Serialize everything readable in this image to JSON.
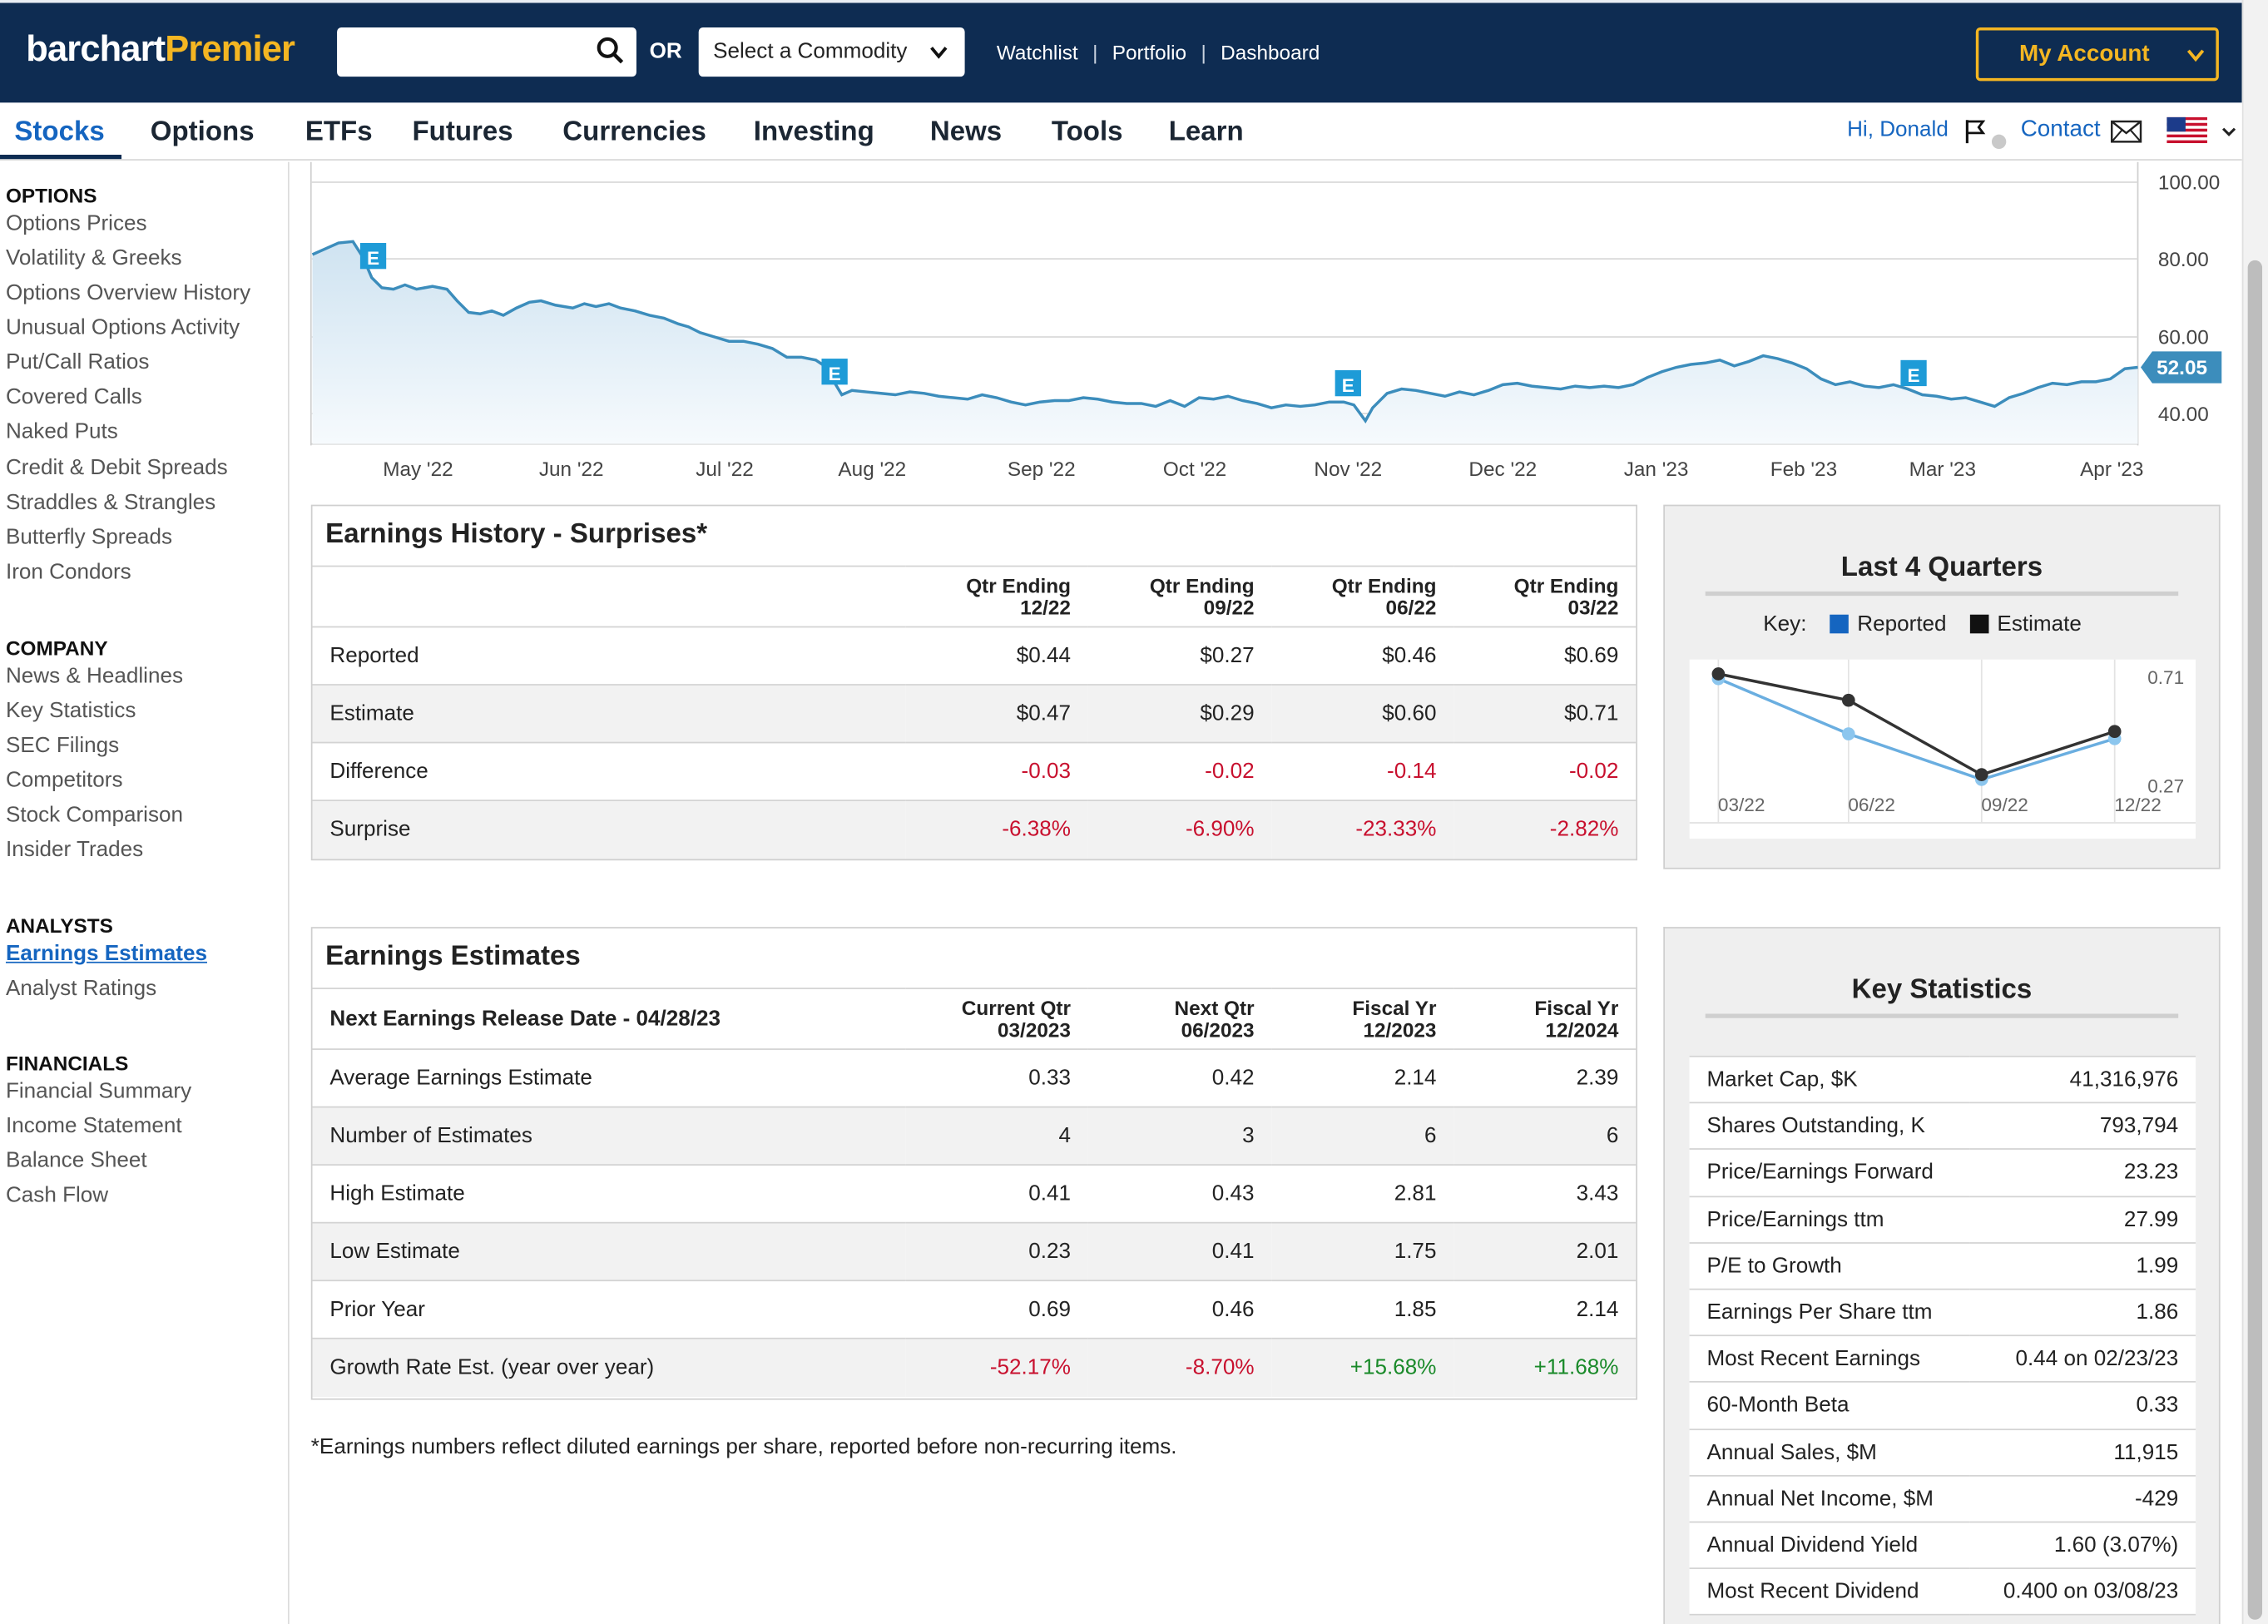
{
  "header": {
    "logo_part1": "barchart",
    "logo_part2": "Premier",
    "search_placeholder": "",
    "or_label": "OR",
    "commodity_label": "Select a Commodity",
    "links": [
      "Watchlist",
      "Portfolio",
      "Dashboard"
    ],
    "account_label": "My Account"
  },
  "nav": {
    "tabs": [
      "Stocks",
      "Options",
      "ETFs",
      "Futures",
      "Currencies",
      "Investing",
      "News",
      "Tools",
      "Learn"
    ],
    "active": "Stocks",
    "greeting": "Hi, Donald",
    "contact": "Contact"
  },
  "sidebar": {
    "options_header": "OPTIONS",
    "options": [
      "Options Prices",
      "Volatility & Greeks",
      "Options Overview History",
      "Unusual Options Activity",
      "Put/Call Ratios",
      "Covered Calls",
      "Naked Puts",
      "Credit & Debit Spreads",
      "Straddles & Strangles",
      "Butterfly Spreads",
      "Iron Condors"
    ],
    "company_header": "COMPANY",
    "company": [
      "News & Headlines",
      "Key Statistics",
      "SEC Filings",
      "Competitors",
      "Stock Comparison",
      "Insider Trades"
    ],
    "analysts_header": "ANALYSTS",
    "analysts": [
      "Earnings Estimates",
      "Analyst Ratings"
    ],
    "financials_header": "FINANCIALS",
    "financials": [
      "Financial Summary",
      "Income Statement",
      "Balance Sheet",
      "Cash Flow"
    ]
  },
  "price_chart": {
    "y_ticks": [
      "100.00",
      "80.00",
      "60.00",
      "40.00"
    ],
    "x_ticks": [
      "May '22",
      "Jun '22",
      "Jul '22",
      "Aug '22",
      "Sep '22",
      "Oct '22",
      "Nov '22",
      "Dec '22",
      "Jan '23",
      "Feb '23",
      "Mar '23",
      "Apr '23"
    ],
    "last_price": "52.05",
    "earnings_marker": "E",
    "line_color": "#3c8dbc"
  },
  "earnings_history": {
    "title": "Earnings History - Surprises*",
    "columns": [
      [
        "Qtr Ending",
        "12/22"
      ],
      [
        "Qtr Ending",
        "09/22"
      ],
      [
        "Qtr Ending",
        "06/22"
      ],
      [
        "Qtr Ending",
        "03/22"
      ]
    ],
    "rows": [
      {
        "label": "Reported",
        "values": [
          "$0.44",
          "$0.27",
          "$0.46",
          "$0.69"
        ]
      },
      {
        "label": "Estimate",
        "values": [
          "$0.47",
          "$0.29",
          "$0.60",
          "$0.71"
        ]
      },
      {
        "label": "Difference",
        "values": [
          "-0.03",
          "-0.02",
          "-0.14",
          "-0.02"
        ]
      },
      {
        "label": "Surprise",
        "values": [
          "-6.38%",
          "-6.90%",
          "-23.33%",
          "-2.82%"
        ]
      }
    ]
  },
  "last4": {
    "title": "Last 4 Quarters",
    "key_label": "Key:",
    "reported_label": "Reported",
    "estimate_label": "Estimate",
    "y_top": "0.71",
    "y_bottom": "0.27",
    "reported_color": "#1565c0",
    "estimate_color": "#111111"
  },
  "chart_data": {
    "type": "line",
    "categories": [
      "03/22",
      "06/22",
      "09/22",
      "12/22"
    ],
    "series": [
      {
        "name": "Reported",
        "values": [
          0.69,
          0.46,
          0.27,
          0.44
        ]
      },
      {
        "name": "Estimate",
        "values": [
          0.71,
          0.6,
          0.29,
          0.47
        ]
      }
    ],
    "title": "Last 4 Quarters",
    "ylim": [
      0.27,
      0.71
    ]
  },
  "earnings_estimates": {
    "title": "Earnings Estimates",
    "release_label": "Next Earnings Release Date - 04/28/23",
    "columns": [
      [
        "Current Qtr",
        "03/2023"
      ],
      [
        "Next Qtr",
        "06/2023"
      ],
      [
        "Fiscal Yr",
        "12/2023"
      ],
      [
        "Fiscal Yr",
        "12/2024"
      ]
    ],
    "rows": [
      {
        "label": "Average Earnings Estimate",
        "values": [
          "0.33",
          "0.42",
          "2.14",
          "2.39"
        ]
      },
      {
        "label": "Number of Estimates",
        "values": [
          "4",
          "3",
          "6",
          "6"
        ]
      },
      {
        "label": "High Estimate",
        "values": [
          "0.41",
          "0.43",
          "2.81",
          "3.43"
        ]
      },
      {
        "label": "Low Estimate",
        "values": [
          "0.23",
          "0.41",
          "1.75",
          "2.01"
        ]
      },
      {
        "label": "Prior Year",
        "values": [
          "0.69",
          "0.46",
          "1.85",
          "2.14"
        ]
      },
      {
        "label": "Growth Rate Est. (year over year)",
        "values": [
          "-52.17%",
          "-8.70%",
          "+15.68%",
          "+11.68%"
        ]
      }
    ]
  },
  "key_statistics": {
    "title": "Key Statistics",
    "rows": [
      {
        "label": "Market Cap, $K",
        "value": "41,316,976"
      },
      {
        "label": "Shares Outstanding, K",
        "value": "793,794"
      },
      {
        "label": "Price/Earnings Forward",
        "value": "23.23"
      },
      {
        "label": "Price/Earnings ttm",
        "value": "27.99"
      },
      {
        "label": "P/E to Growth",
        "value": "1.99"
      },
      {
        "label": "Earnings Per Share ttm",
        "value": "1.86"
      },
      {
        "label": "Most Recent Earnings",
        "value": "0.44 on 02/23/23"
      },
      {
        "label": "60-Month Beta",
        "value": "0.33"
      },
      {
        "label": "Annual Sales, $M",
        "value": "11,915"
      },
      {
        "label": "Annual Net Income, $M",
        "value": "-429"
      },
      {
        "label": "Annual Dividend Yield",
        "value": "1.60 (3.07%)"
      },
      {
        "label": "Most Recent Dividend",
        "value": "0.400 on 03/08/23"
      }
    ]
  },
  "footnote": "*Earnings numbers reflect diluted earnings per share, reported before non-recurring items."
}
